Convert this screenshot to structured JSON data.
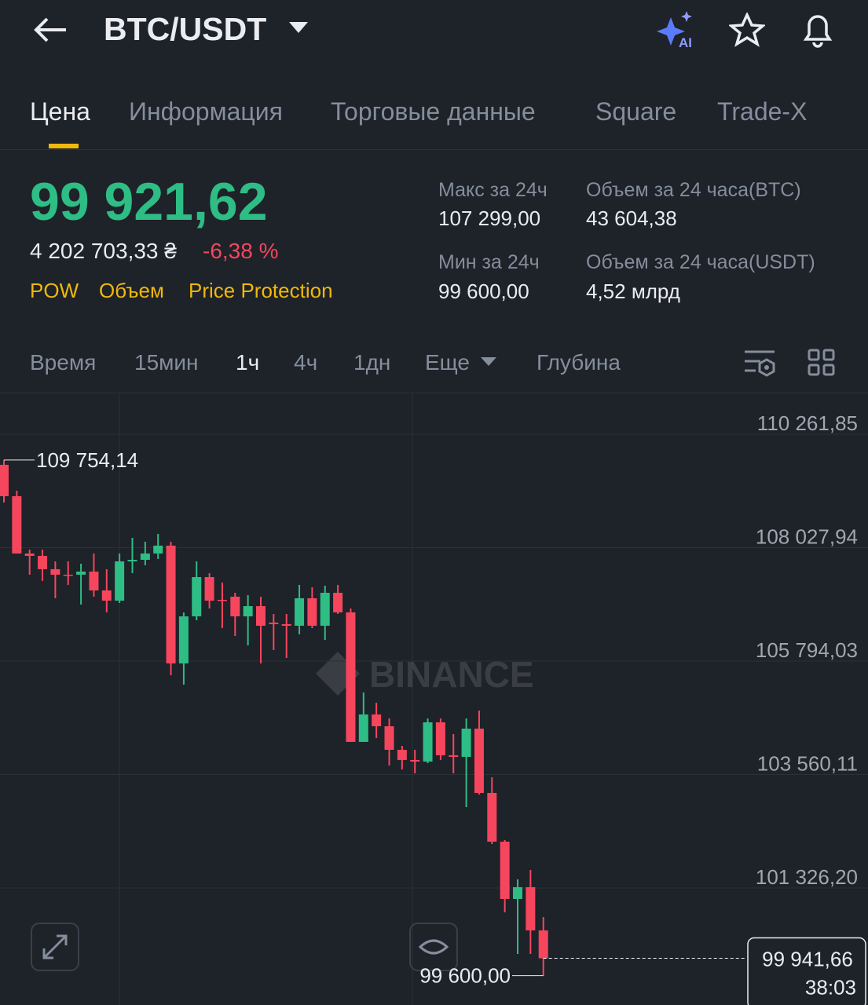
{
  "header": {
    "symbol": "BTC/USDT",
    "ai_badge": "AI"
  },
  "tabs": [
    "Цена",
    "Информация",
    "Торговые данные",
    "Square",
    "Trade-X"
  ],
  "price": {
    "last": "99 921,62",
    "local": "4 202 703,33 ₴",
    "change": "-6,38 %",
    "tags": [
      "POW",
      "Объем",
      "Price Protection"
    ]
  },
  "stats": [
    {
      "label": "Макс за 24ч",
      "value": "107 299,00"
    },
    {
      "label": "Объем за 24 часа(BTC)",
      "value": "43 604,38"
    },
    {
      "label": "Мин за 24ч",
      "value": "99 600,00"
    },
    {
      "label": "Объем за 24 часа(USDT)",
      "value": "4,52 млрд"
    }
  ],
  "intervals": [
    "Время",
    "15мин",
    "1ч",
    "4ч",
    "1дн",
    "Еще",
    "Глубина"
  ],
  "chart_data": {
    "type": "candlestick",
    "watermark": "BINANCE",
    "up_color": "#2ebd85",
    "down_color": "#f6465d",
    "ylim": [
      99022,
      111081
    ],
    "yticks": [
      {
        "value": 101326.2,
        "label": "101 326,20"
      },
      {
        "value": 103560.11,
        "label": "103 560,11"
      },
      {
        "value": 105794.03,
        "label": "105 794,03"
      },
      {
        "value": 108027.94,
        "label": "108 027,94"
      },
      {
        "value": 110261.85,
        "label": "110 261,85"
      }
    ],
    "grid": true,
    "open": [
      109659,
      109041,
      107912,
      107866,
      107603,
      107495,
      107495,
      107556,
      107185,
      106984,
      107757,
      107788,
      107912,
      108067,
      105748,
      106675,
      107448,
      107000,
      107062,
      106675,
      106876,
      106552,
      106521,
      106490,
      107031,
      106490,
      107139,
      106753,
      104202,
      104743,
      104511,
      104047,
      103846,
      103815,
      104588,
      103939,
      103908,
      104464,
      103197,
      102238,
      101110,
      101342,
      100491
    ],
    "high": [
      109754.14,
      109149,
      107989,
      107989,
      107757,
      107757,
      107711,
      107912,
      107603,
      107912,
      108221,
      108144,
      108299,
      108144,
      106753,
      107757,
      107526,
      107340,
      107139,
      107093,
      107062,
      106722,
      106722,
      107294,
      107247,
      107278,
      107294,
      106830,
      105176,
      104975,
      104665,
      104124,
      104047,
      104665,
      104665,
      104356,
      104665,
      104820,
      103506,
      102269,
      101496,
      101682,
      100754
    ],
    "low": [
      108917,
      107912,
      107495,
      107371,
      107031,
      107294,
      106907,
      107062,
      106753,
      106938,
      107526,
      107680,
      107804,
      105516,
      105330,
      106598,
      106830,
      106443,
      106289,
      106103,
      105748,
      106010,
      105856,
      106320,
      106443,
      106211,
      106722,
      104202,
      104202,
      104279,
      103738,
      103661,
      103583,
      103784,
      103846,
      103583,
      102918,
      103166,
      102192,
      100847,
      100027,
      100027,
      99600
    ],
    "close": [
      109041,
      107912,
      107866,
      107603,
      107495,
      107479,
      107556,
      107185,
      106984,
      107757,
      107788,
      107912,
      108067,
      105748,
      106675,
      107448,
      106984,
      106984,
      106675,
      106876,
      106490,
      106521,
      106490,
      107031,
      106490,
      107139,
      106753,
      104202,
      104743,
      104511,
      104047,
      103846,
      103815,
      104588,
      103939,
      103908,
      104464,
      103197,
      102238,
      101110,
      101342,
      100491,
      99941.66
    ],
    "max_label": "109 754,14",
    "min_label": "99 600,00",
    "last_label": "99 941,66",
    "countdown": "38:03"
  }
}
